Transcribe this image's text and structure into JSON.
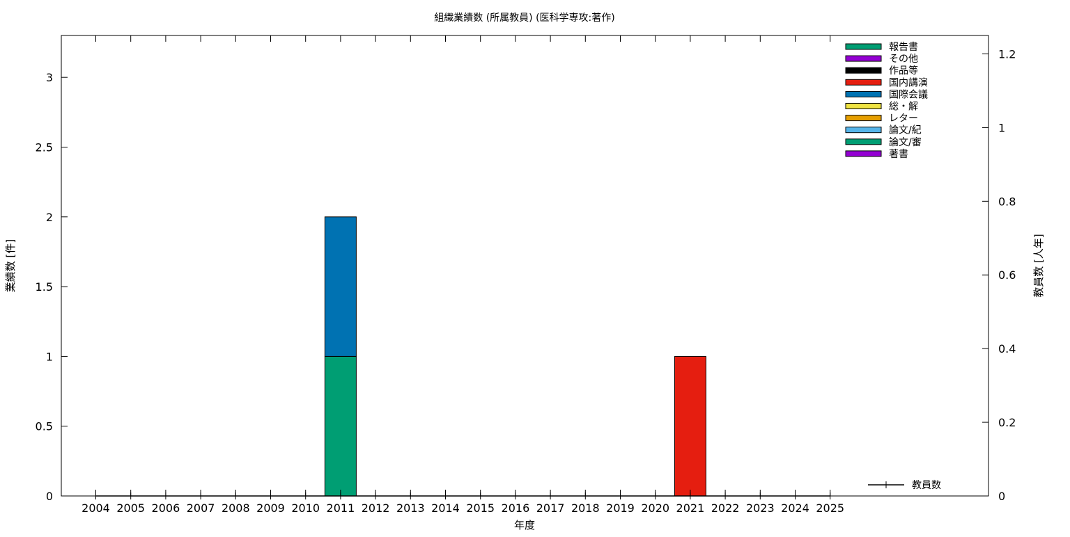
{
  "chart_data": {
    "type": "bar",
    "stacked": true,
    "title": "組織業績数 (所属教員) (医科学専攻:著作)",
    "xlabel": "年度",
    "ylabel": "業績数 [件]",
    "y2label": "教員数 [人年]",
    "categories": [
      "2004",
      "2005",
      "2006",
      "2007",
      "2008",
      "2009",
      "2010",
      "2011",
      "2012",
      "2013",
      "2014",
      "2015",
      "2016",
      "2017",
      "2018",
      "2019",
      "2020",
      "2021",
      "2022",
      "2023",
      "2024",
      "2025"
    ],
    "ylim": [
      0,
      3.3
    ],
    "y2lim": [
      0,
      1.25
    ],
    "yticks": [
      0,
      0.5,
      1,
      1.5,
      2,
      2.5,
      3
    ],
    "y2ticks": [
      0,
      0.2,
      0.4,
      0.6,
      0.8,
      1,
      1.2
    ],
    "grid": false,
    "legend_position": "top-right",
    "series": [
      {
        "name": "著書",
        "color": "#9400d3",
        "values": [
          0,
          0,
          0,
          0,
          0,
          0,
          0,
          0,
          0,
          0,
          0,
          0,
          0,
          0,
          0,
          0,
          0,
          0,
          0,
          0,
          0,
          0
        ]
      },
      {
        "name": "論文/審",
        "color": "#009e73",
        "values": [
          0,
          0,
          0,
          0,
          0,
          0,
          0,
          1,
          0,
          0,
          0,
          0,
          0,
          0,
          0,
          0,
          0,
          0,
          0,
          0,
          0,
          0
        ]
      },
      {
        "name": "論文/紀",
        "color": "#56b4e9",
        "values": [
          0,
          0,
          0,
          0,
          0,
          0,
          0,
          0,
          0,
          0,
          0,
          0,
          0,
          0,
          0,
          0,
          0,
          0,
          0,
          0,
          0,
          0
        ]
      },
      {
        "name": "レター",
        "color": "#e69f00",
        "values": [
          0,
          0,
          0,
          0,
          0,
          0,
          0,
          0,
          0,
          0,
          0,
          0,
          0,
          0,
          0,
          0,
          0,
          0,
          0,
          0,
          0,
          0
        ]
      },
      {
        "name": "総・解",
        "color": "#f0e442",
        "values": [
          0,
          0,
          0,
          0,
          0,
          0,
          0,
          0,
          0,
          0,
          0,
          0,
          0,
          0,
          0,
          0,
          0,
          0,
          0,
          0,
          0,
          0
        ]
      },
      {
        "name": "国際会議",
        "color": "#0072b2",
        "values": [
          0,
          0,
          0,
          0,
          0,
          0,
          0,
          1,
          0,
          0,
          0,
          0,
          0,
          0,
          0,
          0,
          0,
          0,
          0,
          0,
          0,
          0
        ]
      },
      {
        "name": "国内講演",
        "color": "#e51e10",
        "values": [
          0,
          0,
          0,
          0,
          0,
          0,
          0,
          0,
          0,
          0,
          0,
          0,
          0,
          0,
          0,
          0,
          0,
          1,
          0,
          0,
          0,
          0
        ]
      },
      {
        "name": "作品等",
        "color": "#000000",
        "values": [
          0,
          0,
          0,
          0,
          0,
          0,
          0,
          0,
          0,
          0,
          0,
          0,
          0,
          0,
          0,
          0,
          0,
          0,
          0,
          0,
          0,
          0
        ]
      },
      {
        "name": "その他",
        "color": "#9400d3",
        "values": [
          0,
          0,
          0,
          0,
          0,
          0,
          0,
          0,
          0,
          0,
          0,
          0,
          0,
          0,
          0,
          0,
          0,
          0,
          0,
          0,
          0,
          0
        ]
      },
      {
        "name": "報告書",
        "color": "#009e73",
        "values": [
          0,
          0,
          0,
          0,
          0,
          0,
          0,
          0,
          0,
          0,
          0,
          0,
          0,
          0,
          0,
          0,
          0,
          0,
          0,
          0,
          0,
          0
        ]
      }
    ],
    "line_series": {
      "name": "教員数",
      "axis": "y2",
      "color": "#000000",
      "values": [
        0,
        0,
        0,
        0,
        0,
        0,
        0,
        0,
        0,
        0,
        0,
        0,
        0,
        0,
        0,
        0,
        0,
        0,
        0,
        0,
        0,
        0
      ]
    }
  }
}
